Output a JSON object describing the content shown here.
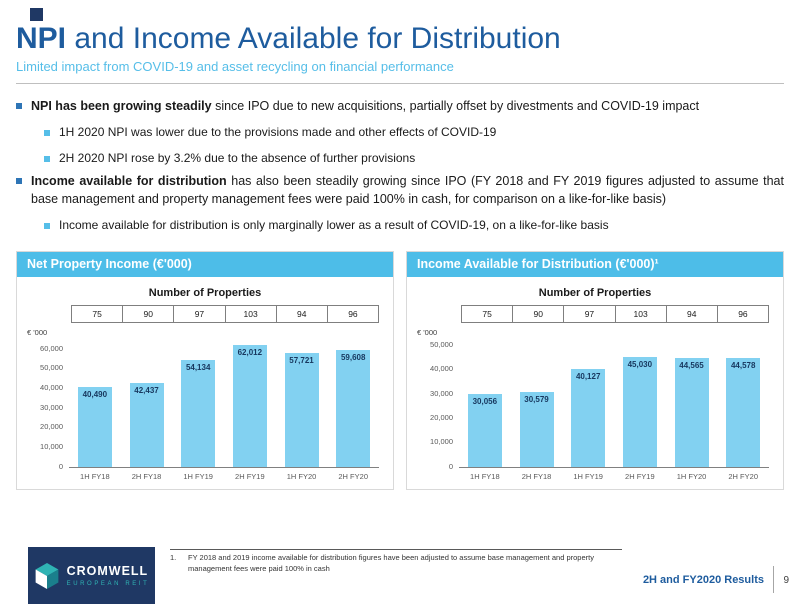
{
  "header": {
    "title_lead": "NPI",
    "title_rest": " and Income Available for Distribution",
    "subtitle": "Limited impact from COVID-19 and asset recycling on financial performance"
  },
  "bullets": [
    {
      "level": 1,
      "lead": "NPI has been growing steadily",
      "rest": " since IPO due to new acquisitions, partially offset by divestments and COVID-19 impact"
    },
    {
      "level": 2,
      "lead": "",
      "rest": "1H 2020 NPI was lower due to the provisions made and other effects of COVID-19"
    },
    {
      "level": 2,
      "lead": "",
      "rest": "2H 2020 NPI rose by 3.2% due to the absence of further provisions"
    },
    {
      "level": 1,
      "lead": "Income available for distribution",
      "rest": " has also been steadily growing since IPO (FY 2018 and FY 2019 figures adjusted to assume that base management and property management fees were paid 100% in cash, for comparison on a like-for-like basis)"
    },
    {
      "level": 2,
      "lead": "",
      "rest": "Income available for distribution is only marginally lower as a result of COVID-19, on a like-for-like basis"
    }
  ],
  "chart_data": [
    {
      "type": "bar",
      "title": "Net Property Income (€'000)",
      "subtitle": "Number of Properties",
      "properties_counts": [
        "75",
        "90",
        "97",
        "103",
        "94",
        "96"
      ],
      "categories": [
        "1H FY18",
        "2H FY18",
        "1H FY19",
        "2H FY19",
        "1H FY20",
        "2H FY20"
      ],
      "values": [
        40490,
        42437,
        54134,
        62012,
        57721,
        59608
      ],
      "value_labels": [
        "40,490",
        "42,437",
        "54,134",
        "62,012",
        "57,721",
        "59,608"
      ],
      "xlabel": "",
      "ylabel": "€ '000",
      "ylim": [
        0,
        60000
      ],
      "ytick_step": 10000,
      "grid": false,
      "legend": "none"
    },
    {
      "type": "bar",
      "title": "Income Available for Distribution (€'000)¹",
      "subtitle": "Number of Properties",
      "properties_counts": [
        "75",
        "90",
        "97",
        "103",
        "94",
        "96"
      ],
      "categories": [
        "1H FY18",
        "2H FY18",
        "1H FY19",
        "2H FY19",
        "1H FY20",
        "2H FY20"
      ],
      "values": [
        30056,
        30579,
        40127,
        45030,
        44565,
        44578
      ],
      "value_labels": [
        "30,056",
        "30,579",
        "40,127",
        "45,030",
        "44,565",
        "44,578"
      ],
      "xlabel": "",
      "ylabel": "€ '000",
      "ylim": [
        0,
        50000
      ],
      "ytick_step": 10000,
      "grid": false,
      "legend": "none"
    }
  ],
  "footnote": {
    "marker": "1.",
    "text": "FY 2018 and 2019 income available for distribution figures have been adjusted to assume base management and property management fees were paid 100% in cash"
  },
  "footer": {
    "brand": "CROMWELL",
    "brand_sub": "EUROPEAN REIT",
    "results_label": "2H and FY2020 Results",
    "page_number": "9"
  },
  "colors": {
    "accent_navy": "#1F3864",
    "title_blue": "#1E5C9E",
    "subtitle_blue": "#56BEE8",
    "panel_header_blue": "#4DBDE8",
    "bar_fill": "#82D1F1",
    "bullet_l1": "#2E75B6",
    "bullet_l2": "#56BEE8",
    "brand_teal": "#2FB4B4"
  }
}
